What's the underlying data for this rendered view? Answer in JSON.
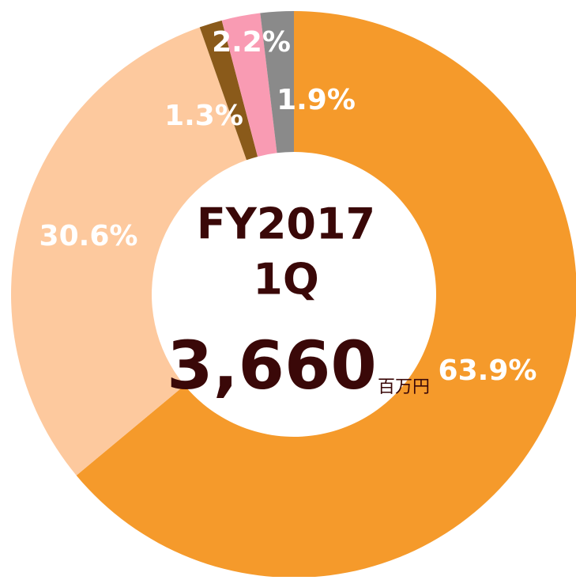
{
  "chart_data": {
    "type": "donut",
    "values": [
      63.9,
      30.6,
      1.3,
      2.2,
      1.9
    ],
    "value_labels": [
      "63.9%",
      "30.6%",
      "1.3%",
      "2.2%",
      "1.9%"
    ],
    "colors": [
      "#f59a2b",
      "#fdc99e",
      "#8a5a1a",
      "#f99bb3",
      "#8a8a8a"
    ],
    "center_text": {
      "period": "FY2017",
      "quarter": "1Q",
      "total": "3,660",
      "unit": "百万円"
    }
  }
}
